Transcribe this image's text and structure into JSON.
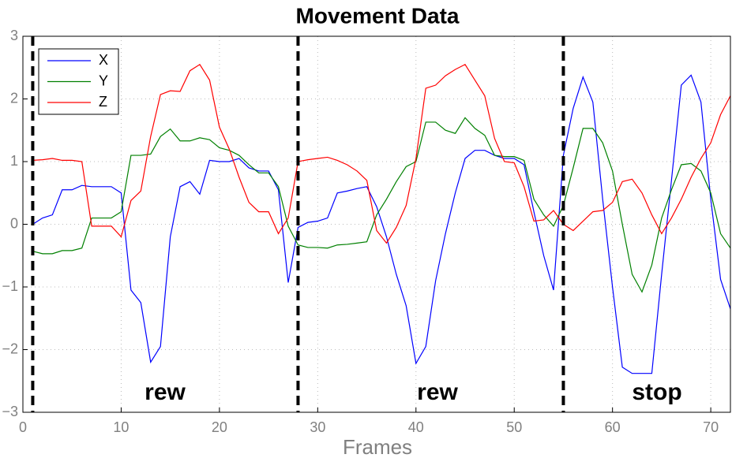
{
  "chart_data": {
    "type": "line",
    "title": "Movement Data",
    "xlabel": "Frames",
    "x": [
      1,
      2,
      3,
      4,
      5,
      6,
      7,
      8,
      9,
      10,
      11,
      12,
      13,
      14,
      15,
      16,
      17,
      18,
      19,
      20,
      21,
      22,
      23,
      24,
      25,
      26,
      27,
      28,
      29,
      30,
      31,
      32,
      33,
      34,
      35,
      36,
      37,
      38,
      39,
      40,
      41,
      42,
      43,
      44,
      45,
      46,
      47,
      48,
      49,
      50,
      51,
      52,
      53,
      54,
      55,
      56,
      57,
      58,
      59,
      60,
      61,
      62,
      63,
      64,
      65,
      66,
      67,
      68,
      69,
      70,
      71,
      72
    ],
    "series": [
      {
        "name": "X",
        "color": "#0000ff",
        "values": [
          0.0,
          0.1,
          0.15,
          0.55,
          0.55,
          0.62,
          0.6,
          0.6,
          0.6,
          0.5,
          -1.05,
          -1.25,
          -2.2,
          -1.95,
          -0.2,
          0.6,
          0.68,
          0.48,
          1.02,
          1.0,
          1.0,
          1.05,
          0.9,
          0.85,
          0.85,
          0.55,
          -0.93,
          -0.05,
          0.03,
          0.05,
          0.1,
          0.5,
          0.53,
          0.57,
          0.6,
          0.28,
          -0.2,
          -0.8,
          -1.3,
          -2.22,
          -1.95,
          -0.9,
          -0.15,
          0.5,
          1.05,
          1.18,
          1.18,
          1.1,
          1.05,
          1.05,
          0.95,
          0.2,
          -0.5,
          -1.05,
          1.1,
          1.85,
          2.35,
          1.95,
          0.4,
          -1.0,
          -2.28,
          -2.38,
          -2.38,
          -2.38,
          -0.8,
          0.7,
          2.22,
          2.38,
          1.95,
          0.4,
          -0.88,
          -1.35
        ]
      },
      {
        "name": "Y",
        "color": "#008000",
        "values": [
          -0.43,
          -0.47,
          -0.47,
          -0.42,
          -0.42,
          -0.38,
          0.1,
          0.1,
          0.1,
          0.2,
          1.1,
          1.1,
          1.12,
          1.4,
          1.52,
          1.33,
          1.33,
          1.38,
          1.35,
          1.22,
          1.18,
          1.1,
          0.95,
          0.82,
          0.82,
          0.6,
          -0.03,
          -0.33,
          -0.37,
          -0.37,
          -0.38,
          -0.33,
          -0.32,
          -0.3,
          -0.28,
          0.15,
          0.4,
          0.68,
          0.92,
          1.0,
          1.63,
          1.63,
          1.5,
          1.45,
          1.7,
          1.53,
          1.42,
          1.1,
          1.08,
          1.08,
          1.02,
          0.4,
          0.15,
          -0.03,
          0.3,
          0.9,
          1.53,
          1.53,
          1.3,
          0.85,
          0.0,
          -0.8,
          -1.08,
          -0.65,
          0.1,
          0.55,
          0.95,
          0.97,
          0.85,
          0.5,
          -0.15,
          -0.38
        ]
      },
      {
        "name": "Z",
        "color": "#ff0000",
        "values": [
          1.02,
          1.03,
          1.05,
          1.02,
          1.02,
          1.0,
          -0.03,
          -0.03,
          -0.03,
          -0.2,
          0.38,
          0.53,
          1.4,
          2.07,
          2.13,
          2.12,
          2.45,
          2.55,
          2.3,
          1.55,
          1.2,
          0.75,
          0.35,
          0.2,
          0.2,
          -0.15,
          0.1,
          1.0,
          1.03,
          1.05,
          1.07,
          1.02,
          0.95,
          0.85,
          0.7,
          -0.1,
          -0.3,
          -0.05,
          0.3,
          1.05,
          2.17,
          2.22,
          2.37,
          2.47,
          2.55,
          2.3,
          2.05,
          1.37,
          1.0,
          0.98,
          0.6,
          0.05,
          0.07,
          0.22,
          0.0,
          -0.1,
          0.05,
          0.2,
          0.22,
          0.35,
          0.68,
          0.72,
          0.5,
          0.15,
          -0.15,
          0.1,
          0.4,
          0.75,
          1.05,
          1.3,
          1.75,
          2.05
        ]
      }
    ],
    "vlines": [
      1,
      28,
      55
    ],
    "annotations": [
      "rew",
      "rew",
      "stop"
    ],
    "xlim": [
      0,
      72
    ],
    "xticks": [
      0,
      10,
      20,
      30,
      40,
      50,
      60,
      70
    ],
    "ylim": [
      -3,
      3
    ],
    "yticks": [
      {
        "value": -3,
        "label": "−3"
      },
      {
        "value": -2,
        "label": "−2"
      },
      {
        "value": -1,
        "label": "−1"
      },
      0,
      1,
      2,
      3
    ],
    "grid": true,
    "legend": "upper left"
  }
}
